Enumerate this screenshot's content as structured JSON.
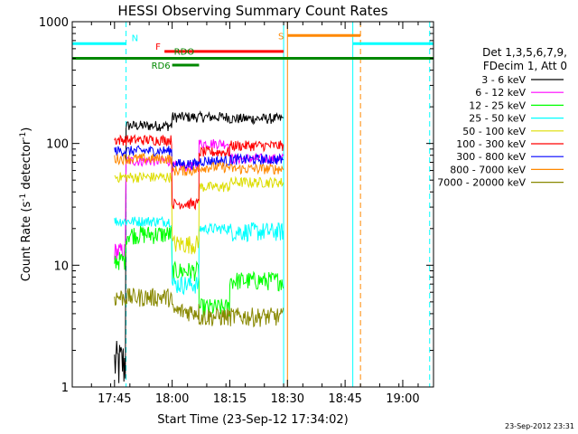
{
  "chart_data": {
    "type": "line",
    "title": "HESSI Observing Summary Count Rates",
    "xlabel": "Start Time (23-Sep-12 17:34:02)",
    "ylabel_main": "Count Rate (s",
    "ylabel_sup1": "-1",
    "ylabel_mid": " detector",
    "ylabel_sup2": "-1",
    "ylabel_end": ")",
    "y_scale": "log",
    "ylim": [
      1,
      1000
    ],
    "xlim_minutes": [
      0,
      94
    ],
    "x_ticks": [
      {
        "label": "17:45",
        "min": 11
      },
      {
        "label": "18:00",
        "min": 26
      },
      {
        "label": "18:15",
        "min": 41
      },
      {
        "label": "18:30",
        "min": 56
      },
      {
        "label": "18:45",
        "min": 71
      },
      {
        "label": "19:00",
        "min": 86
      }
    ],
    "y_ticks": [
      {
        "label": "1",
        "value": 1
      },
      {
        "label": "10",
        "value": 10
      },
      {
        "label": "100",
        "value": 100
      },
      {
        "label": "1000",
        "value": 1000
      }
    ],
    "legend_header": [
      "Det 1,3,5,6,7,9,",
      "FDecim 1, Att 0"
    ],
    "series": [
      {
        "name": "3 - 6 keV",
        "color": "#000000",
        "segs": [
          [
            11,
            14,
            1.6
          ],
          [
            14,
            26,
            140
          ],
          [
            26,
            41,
            165
          ],
          [
            41,
            55,
            160
          ]
        ]
      },
      {
        "name": "6 - 12 keV",
        "color": "#ff00ff",
        "segs": [
          [
            11,
            14,
            13
          ],
          [
            14,
            26,
            72
          ],
          [
            26,
            33,
            65
          ],
          [
            33,
            41,
            100
          ],
          [
            41,
            55,
            75
          ]
        ]
      },
      {
        "name": "12 - 25 keV",
        "color": "#00ff00",
        "segs": [
          [
            11,
            14,
            11
          ],
          [
            14,
            26,
            18
          ],
          [
            26,
            33,
            9
          ],
          [
            33,
            41,
            4.5
          ],
          [
            41,
            55,
            7.5
          ]
        ]
      },
      {
        "name": "25 - 50 keV",
        "color": "#00ffff",
        "segs": [
          [
            11,
            26,
            23
          ],
          [
            26,
            33,
            7
          ],
          [
            33,
            41,
            20
          ],
          [
            41,
            55,
            19
          ]
        ]
      },
      {
        "name": "50 - 100 keV",
        "color": "#dddd00",
        "segs": [
          [
            11,
            26,
            53
          ],
          [
            26,
            33,
            15
          ],
          [
            33,
            41,
            44
          ],
          [
            41,
            55,
            48
          ]
        ]
      },
      {
        "name": "100 - 300 keV",
        "color": "#ff0000",
        "segs": [
          [
            11,
            26,
            107
          ],
          [
            26,
            33,
            32
          ],
          [
            33,
            41,
            85
          ],
          [
            41,
            55,
            96
          ]
        ]
      },
      {
        "name": "300 - 800 keV",
        "color": "#0000ff",
        "segs": [
          [
            11,
            26,
            87
          ],
          [
            26,
            33,
            68
          ],
          [
            33,
            41,
            72
          ],
          [
            41,
            55,
            74
          ]
        ]
      },
      {
        "name": "800 - 7000 keV",
        "color": "#ff8800",
        "segs": [
          [
            11,
            26,
            75
          ],
          [
            26,
            33,
            60
          ],
          [
            33,
            41,
            64
          ],
          [
            41,
            55,
            62
          ]
        ]
      },
      {
        "name": "7000 - 20000 keV",
        "color": "#888800",
        "segs": [
          [
            11,
            26,
            5.5
          ],
          [
            26,
            33,
            4.2
          ],
          [
            33,
            41,
            3.8
          ],
          [
            41,
            55,
            3.8
          ]
        ]
      }
    ],
    "flag_bars": [
      {
        "label": "N",
        "color": "#00ffff",
        "y": 660,
        "segs": [
          [
            0,
            14
          ],
          [
            73,
            94
          ]
        ]
      },
      {
        "label": "S",
        "color": "#ff8800",
        "y": 770,
        "segs": [
          [
            56,
            75
          ]
        ]
      },
      {
        "label": "F",
        "color": "#ff0000",
        "y": 570,
        "segs": [
          [
            24,
            55
          ]
        ]
      },
      {
        "label": "RDO",
        "color": "#008800",
        "y": 500,
        "segs": [
          [
            0,
            94
          ]
        ]
      },
      {
        "label": "RD6",
        "color": "#008800",
        "y": 440,
        "segs": [
          [
            26,
            33
          ]
        ]
      }
    ],
    "vlines": [
      {
        "min": 0,
        "color": "#00ffff",
        "dash": false
      },
      {
        "min": 14,
        "color": "#00ffff",
        "dash": true
      },
      {
        "min": 55,
        "color": "#00ffff",
        "dash": false
      },
      {
        "min": 56,
        "color": "#ff8800",
        "dash": false
      },
      {
        "min": 73,
        "color": "#00ffff",
        "dash": false
      },
      {
        "min": 75,
        "color": "#ff8800",
        "dash": true
      },
      {
        "min": 93,
        "color": "#00ffff",
        "dash": true
      }
    ],
    "timestamp": "23-Sep-2012 23:31"
  }
}
